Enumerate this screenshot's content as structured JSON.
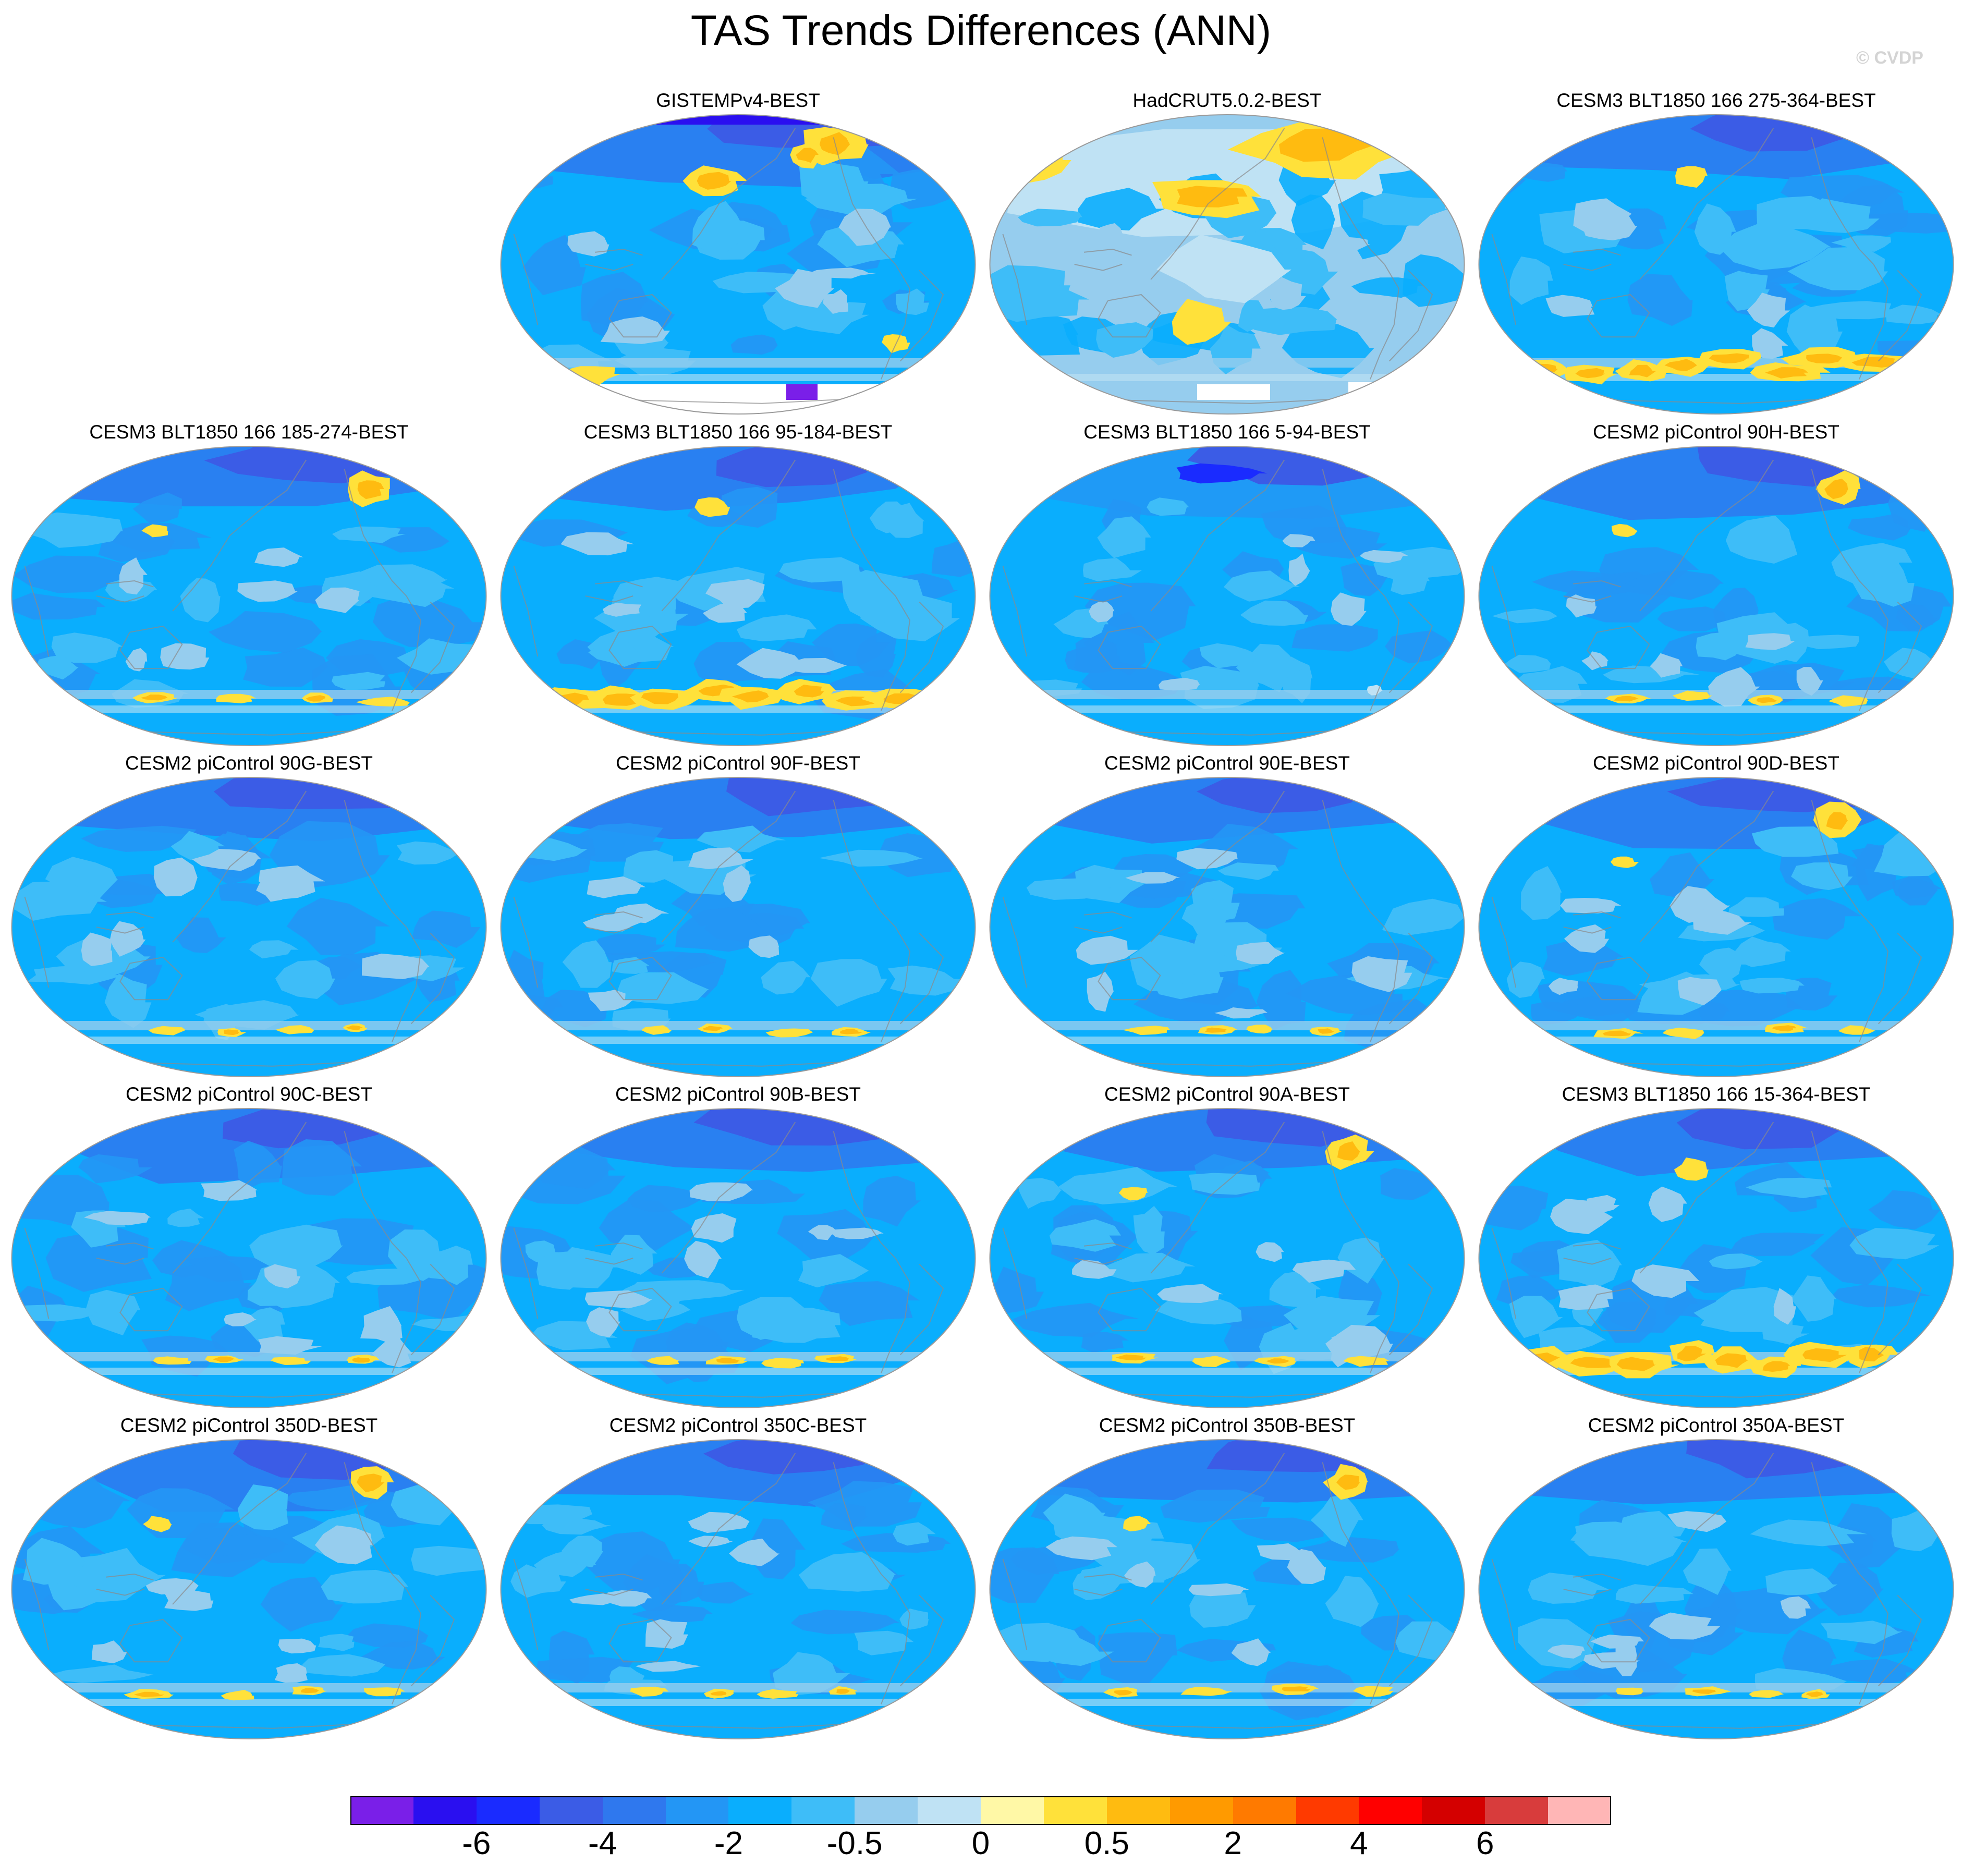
{
  "figure": {
    "title": "TAS Trends Differences (ANN)",
    "watermark": "© CVDP"
  },
  "colors": {
    "background_dark": "#0aaefd",
    "land_lines": "#8a8a8a",
    "outline": "#9a9a9a",
    "mask": "#ffffff"
  },
  "panels": [
    {
      "label": "GISTEMPv4-BEST",
      "style": "gistemp"
    },
    {
      "label": "HadCRUT5.0.2-BEST",
      "style": "hadcrut"
    },
    {
      "label": "CESM3 BLT1850 166 275-364-BEST",
      "style": "model_warmsouth"
    },
    {
      "label": "CESM3 BLT1850 166 185-274-BEST",
      "style": "model_warmne"
    },
    {
      "label": "CESM3 BLT1850 166 95-184-BEST",
      "style": "model_warmsouth"
    },
    {
      "label": "CESM3 BLT1850 166 5-94-BEST",
      "style": "model_cold"
    },
    {
      "label": "CESM2 piControl 90H-BEST",
      "style": "model_warmne"
    },
    {
      "label": "CESM2 piControl 90G-BEST",
      "style": "model"
    },
    {
      "label": "CESM2 piControl 90F-BEST",
      "style": "model"
    },
    {
      "label": "CESM2 piControl 90E-BEST",
      "style": "model"
    },
    {
      "label": "CESM2 piControl 90D-BEST",
      "style": "model_warmne"
    },
    {
      "label": "CESM2 piControl 90C-BEST",
      "style": "model"
    },
    {
      "label": "CESM2 piControl 90B-BEST",
      "style": "model"
    },
    {
      "label": "CESM2 piControl 90A-BEST",
      "style": "model_warmne"
    },
    {
      "label": "CESM3 BLT1850 166 15-364-BEST",
      "style": "model_warmsouth"
    },
    {
      "label": "CESM2 piControl 350D-BEST",
      "style": "model_warmne"
    },
    {
      "label": "CESM2 piControl 350C-BEST",
      "style": "model"
    },
    {
      "label": "CESM2 piControl 350B-BEST",
      "style": "model_warmne"
    },
    {
      "label": "CESM2 piControl 350A-BEST",
      "style": "model"
    }
  ],
  "colorbar": {
    "colors": [
      "#7a1fe8",
      "#2a0ff0",
      "#1a2bff",
      "#3b5ce6",
      "#2f78ee",
      "#2396f5",
      "#0aaefd",
      "#3ebdf8",
      "#96cdee",
      "#bfe2f4",
      "#fff8a6",
      "#ffe13a",
      "#ffbb10",
      "#ff9a00",
      "#ff7a00",
      "#ff3a00",
      "#ff0000",
      "#d40000",
      "#d83c3c",
      "#ffb6b6"
    ],
    "labels": [
      {
        "text": "-6",
        "index": 2
      },
      {
        "text": "-4",
        "index": 4
      },
      {
        "text": "-2",
        "index": 6
      },
      {
        "text": "-0.5",
        "index": 8
      },
      {
        "text": "0",
        "index": 10
      },
      {
        "text": "0.5",
        "index": 12
      },
      {
        "text": "2",
        "index": 14
      },
      {
        "text": "4",
        "index": 16
      },
      {
        "text": "6",
        "index": 18
      }
    ]
  }
}
